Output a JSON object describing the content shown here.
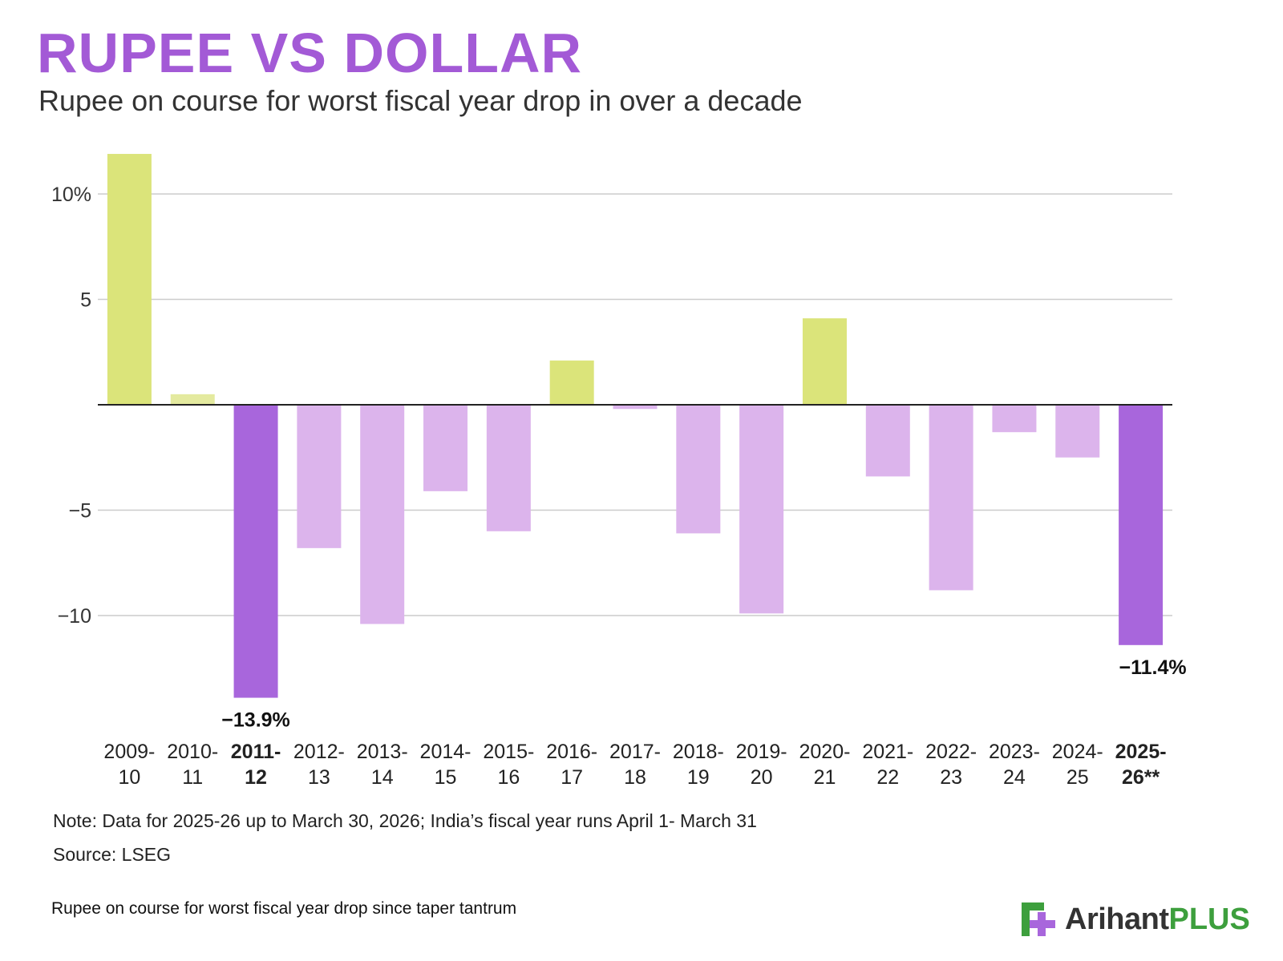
{
  "header": {
    "title": "RUPEE VS DOLLAR",
    "subtitle": "Rupee on course for worst fiscal year drop in over a decade"
  },
  "chart_data": {
    "type": "bar",
    "title": "RUPEE VS DOLLAR",
    "subtitle": "Rupee on course for worst fiscal year drop in over a decade",
    "xlabel": "",
    "ylabel": "",
    "ylim": [
      -15,
      12
    ],
    "yticks": [
      10,
      5,
      -5,
      -10
    ],
    "ytick_labels": [
      "10%",
      "5",
      "−5",
      "−10"
    ],
    "grid": true,
    "categories": [
      [
        "2009-",
        "10"
      ],
      [
        "2010-",
        "11"
      ],
      [
        "2011-",
        "12"
      ],
      [
        "2012-",
        "13"
      ],
      [
        "2013-",
        "14"
      ],
      [
        "2014-",
        "15"
      ],
      [
        "2015-",
        "16"
      ],
      [
        "2016-",
        "17"
      ],
      [
        "2017-",
        "18"
      ],
      [
        "2018-",
        "19"
      ],
      [
        "2019-",
        "20"
      ],
      [
        "2020-",
        "21"
      ],
      [
        "2021-",
        "22"
      ],
      [
        "2022-",
        "23"
      ],
      [
        "2023-",
        "24"
      ],
      [
        "2024-",
        "25"
      ],
      [
        "2025-",
        "26**"
      ]
    ],
    "values": [
      11.9,
      0.5,
      -13.9,
      -6.8,
      -10.4,
      -4.1,
      -6.0,
      2.1,
      -0.2,
      -6.1,
      -9.9,
      4.1,
      -3.4,
      -8.8,
      -1.3,
      -2.5,
      -11.4
    ],
    "highlighted": [
      2,
      16
    ],
    "data_labels": [
      {
        "index": 2,
        "text": "−13.9%"
      },
      {
        "index": 16,
        "text": "−11.4%"
      }
    ],
    "colors": {
      "positive": "#dbe47a",
      "positive_small": "#e4ea9f",
      "negative": "#dcb4ec",
      "highlight": "#a866dc",
      "grid": "#cccccc",
      "axis": "#222222"
    }
  },
  "notes": {
    "note": "Note: Data for 2025-26 up to March 30, 2026; India’s fiscal year runs April 1- March 31",
    "source": "Source: LSEG"
  },
  "footer": {
    "caption": "Rupee on course for worst fiscal year drop since taper tantrum",
    "brand_name": "Arihant",
    "brand_plus": "PLUS",
    "brand_icon": "arihant-logo-icon"
  }
}
